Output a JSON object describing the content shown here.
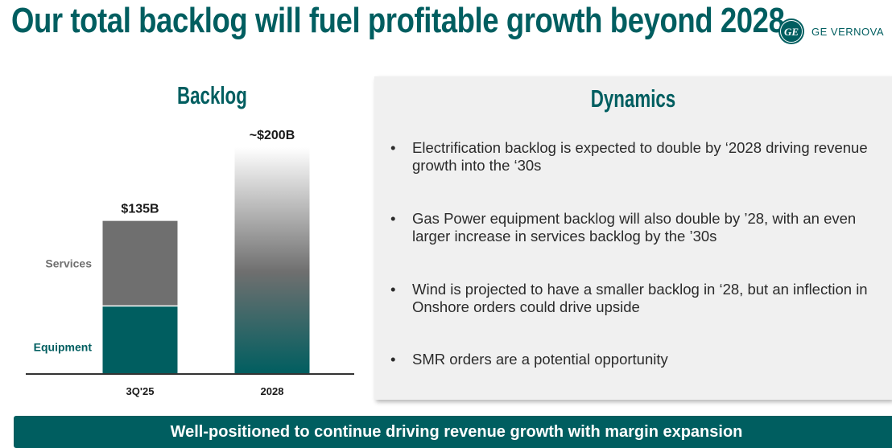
{
  "header": {
    "title": "Our total backlog will fuel profitable growth beyond 2028",
    "logo_text": "GE VERNOVA",
    "logo_icon": "ge-monogram-icon"
  },
  "chart_data": {
    "type": "bar",
    "title": "Backlog",
    "categories": [
      "3Q'25",
      "2028"
    ],
    "series": [
      {
        "name": "Equipment",
        "values": [
          60,
          null
        ]
      },
      {
        "name": "Services",
        "values": [
          75,
          null
        ]
      }
    ],
    "totals": [
      135,
      200
    ],
    "total_labels": [
      "$135B",
      "~$200B"
    ],
    "legend": [
      "Services",
      "Equipment"
    ],
    "legend_placement": "left",
    "units": "$B",
    "ylim": [
      0,
      200
    ],
    "grid": false,
    "xlabel": "",
    "ylabel": ""
  },
  "dynamics": {
    "heading": "Dynamics",
    "bullet_char": "•",
    "items": [
      "Electrification backlog is expected to double by ‘2028 driving revenue growth into the ‘30s",
      "Gas Power equipment backlog will also double by ’28, with an even larger increase in services backlog by the ’30s",
      "Wind is projected to have a smaller backlog in ‘28, but an inflection in Onshore orders could drive upside",
      "SMR orders are a potential opportunity"
    ]
  },
  "banner": {
    "text": "Well-positioned to continue driving revenue growth with margin expansion"
  },
  "colors": {
    "brand": "#005e60",
    "services": "#6f6f6f",
    "label_gray": "#707070",
    "panel_bg": "#f0f0f0"
  }
}
